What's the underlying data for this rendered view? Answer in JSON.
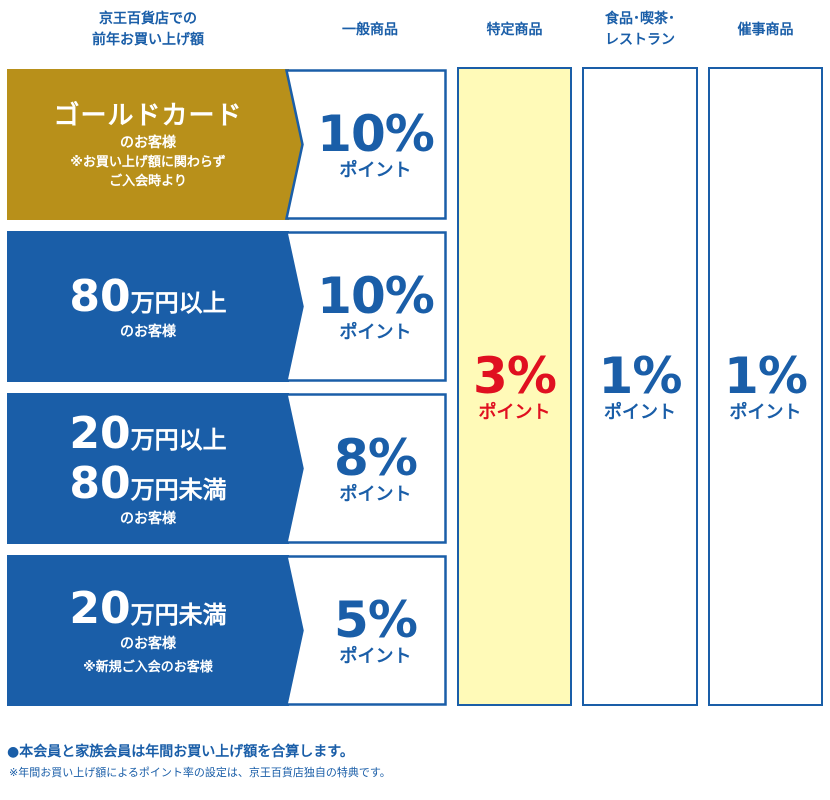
{
  "headers": {
    "tier_line1": "京王百貨店での",
    "tier_line2": "前年お買い上げ額",
    "general": "一般商品",
    "special": "特定商品",
    "food_line1": "食品･喫茶･",
    "food_line2": "レストラン",
    "event": "催事商品"
  },
  "colors": {
    "gold": "#b8901a",
    "blue": "#1a5ea8",
    "special_bg": "#fffab8",
    "special_text": "#e01020"
  },
  "tiers": [
    {
      "title": "ゴールドカード",
      "customer": "のお客様",
      "note1": "※お買い上げ額に関わらず",
      "note2": "ご入会時より",
      "general_pct": "10%",
      "point": "ポイント"
    },
    {
      "amount": "80",
      "unit": "万円以上",
      "customer": "のお客様",
      "general_pct": "10%",
      "point": "ポイント"
    },
    {
      "amount1": "20",
      "unit1": "万円以上",
      "amount2": "80",
      "unit2": "万円未満",
      "customer": "のお客様",
      "general_pct": "8%",
      "point": "ポイント"
    },
    {
      "amount": "20",
      "unit": "万円未満",
      "customer": "のお客様",
      "note1": "※新規ご入会のお客様",
      "general_pct": "5%",
      "point": "ポイント"
    }
  ],
  "columns": {
    "special": {
      "pct": "3%",
      "point": "ポイント"
    },
    "food": {
      "pct": "1%",
      "point": "ポイント"
    },
    "event": {
      "pct": "1%",
      "point": "ポイント"
    }
  },
  "footer": {
    "line1": "●本会員と家族会員は年間お買い上げ額を合算します。",
    "line2": "※年間お買い上げ額によるポイント率の設定は、京王百貨店独自の特典です。"
  }
}
